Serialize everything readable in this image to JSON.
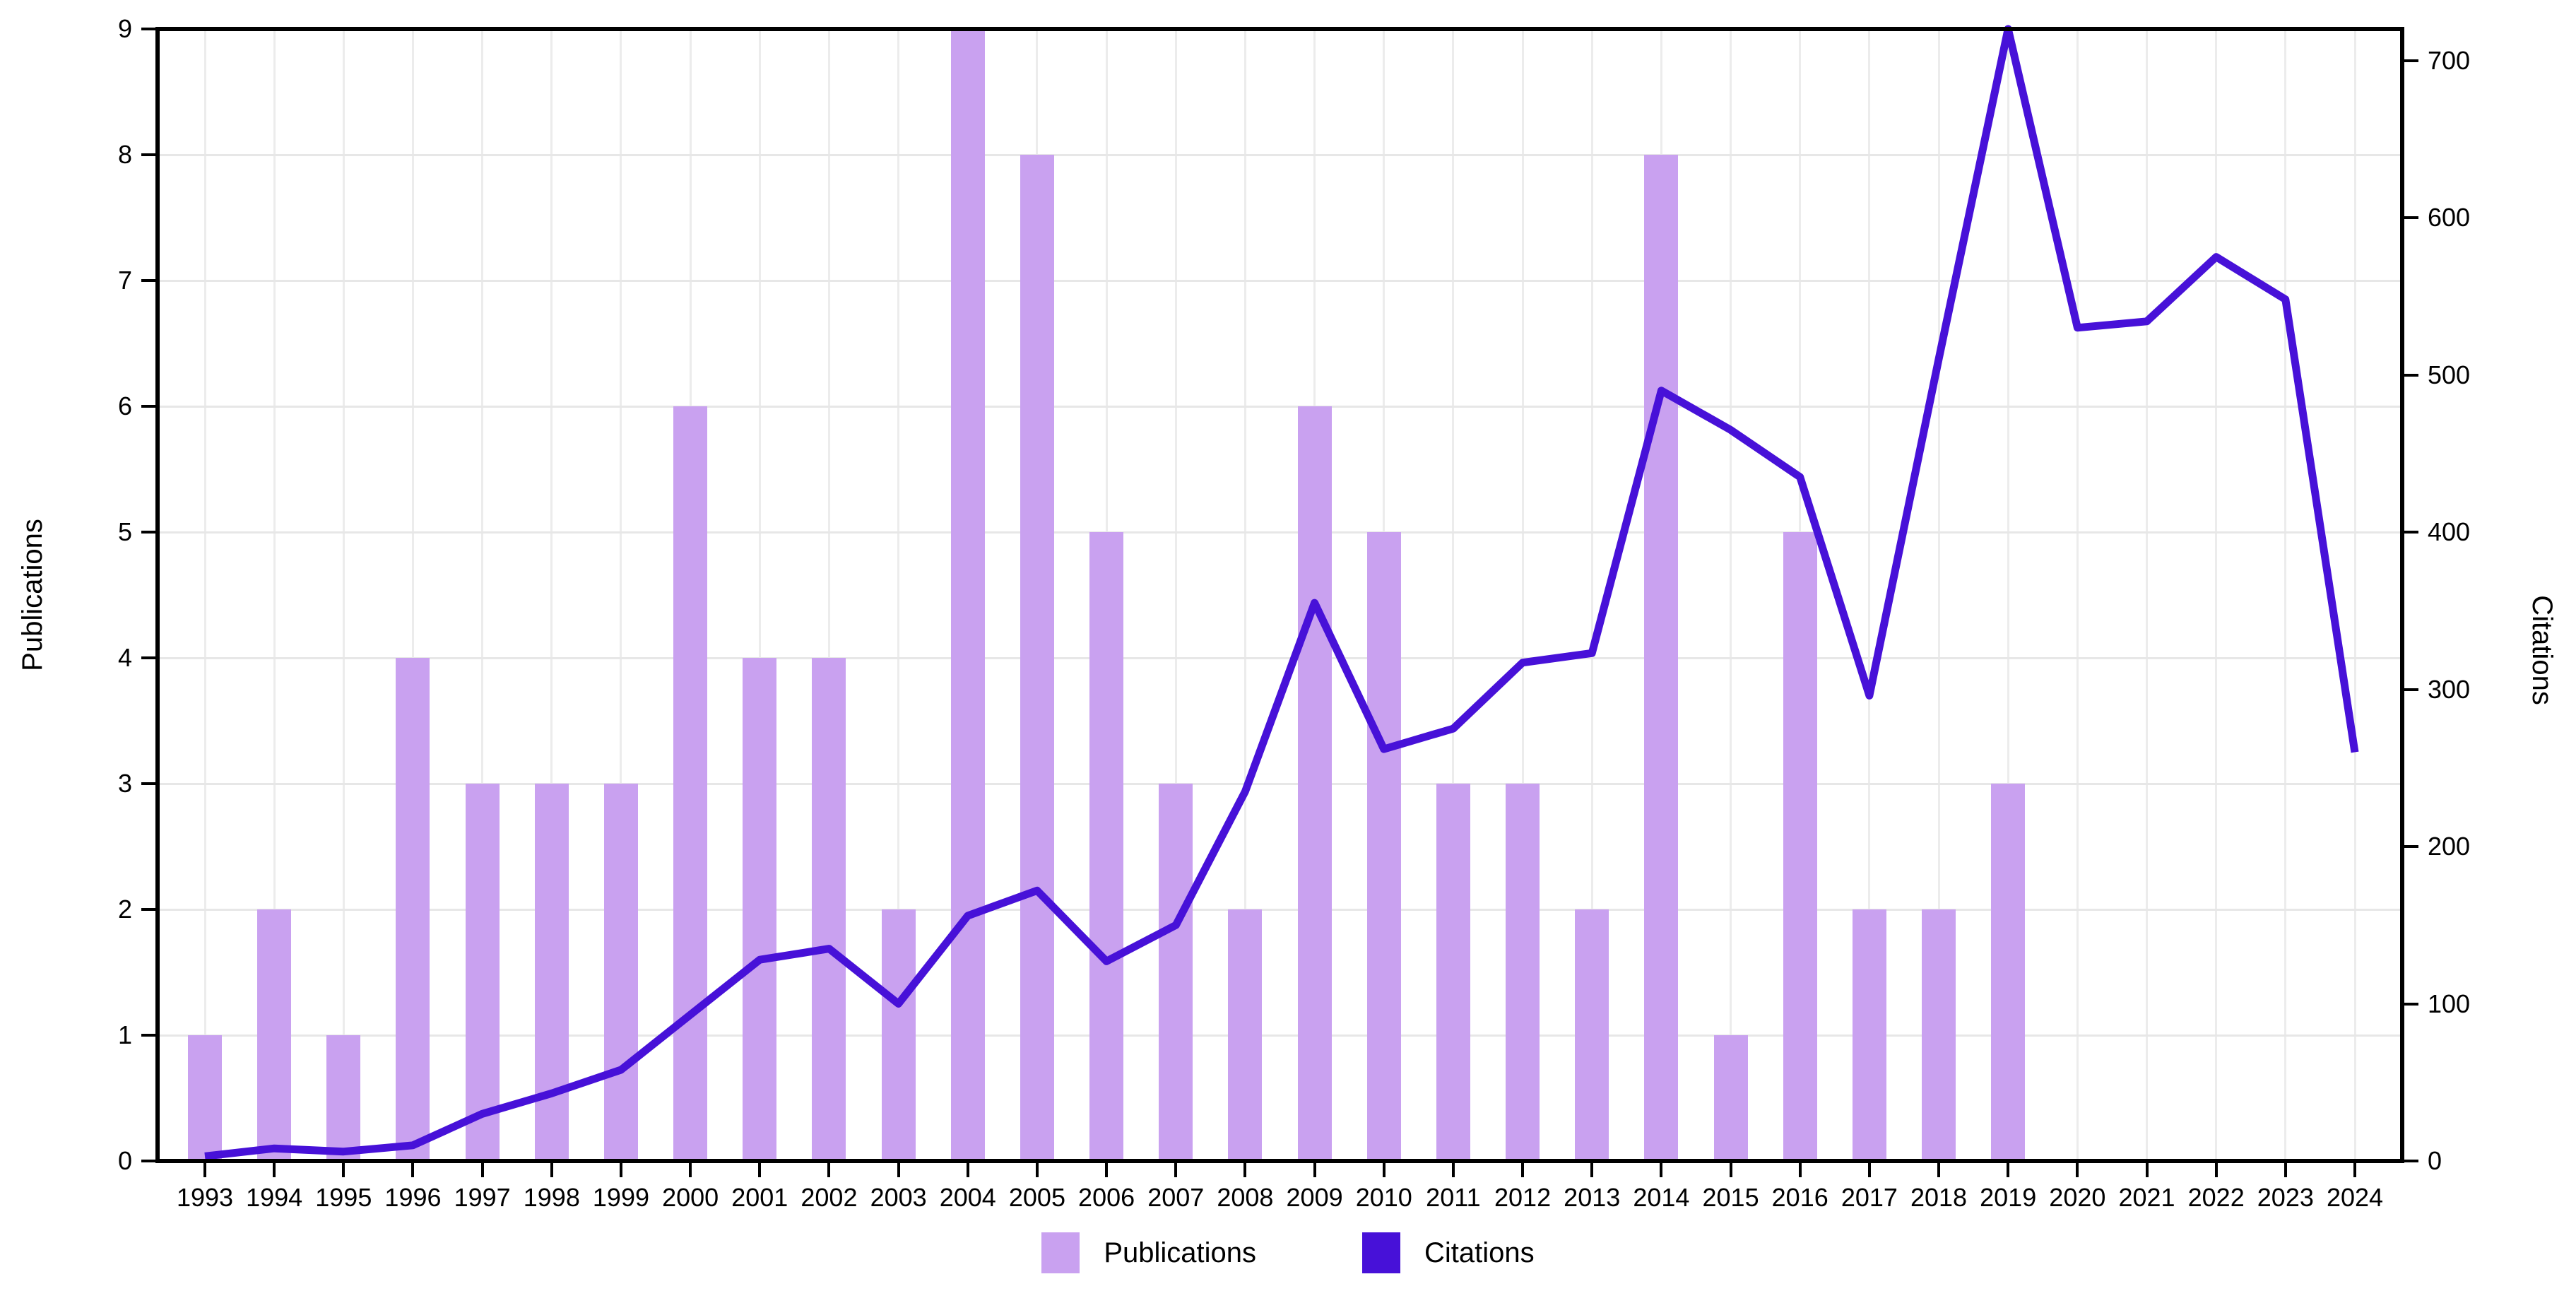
{
  "chart_data": {
    "type": "bar+line",
    "title": "",
    "categories": [
      "1993",
      "1994",
      "1995",
      "1996",
      "1997",
      "1998",
      "1999",
      "2000",
      "2001",
      "2002",
      "2003",
      "2004",
      "2005",
      "2006",
      "2007",
      "2008",
      "2009",
      "2010",
      "2011",
      "2012",
      "2013",
      "2014",
      "2015",
      "2016",
      "2017",
      "2018",
      "2019",
      "2020",
      "2021",
      "2022",
      "2023",
      "2024"
    ],
    "series": [
      {
        "name": "Publications",
        "type": "bar",
        "axis": "left",
        "color": "#c9a1f0",
        "values": [
          1,
          2,
          1,
          4,
          3,
          3,
          3,
          6,
          4,
          4,
          2,
          9,
          8,
          5,
          3,
          2,
          6,
          5,
          3,
          3,
          2,
          8,
          1,
          5,
          2,
          2,
          3,
          0,
          0,
          0,
          0,
          0
        ]
      },
      {
        "name": "Citations",
        "type": "line",
        "axis": "right",
        "color": "#4711d8",
        "values": [
          3,
          8,
          6,
          10,
          30,
          43,
          58,
          93,
          128,
          135,
          100,
          156,
          172,
          127,
          150,
          235,
          355,
          262,
          275,
          317,
          323,
          490,
          465,
          435,
          296,
          510,
          720,
          530,
          534,
          575,
          548,
          260
        ]
      }
    ],
    "left_axis": {
      "label": "Publications",
      "min": 0,
      "max": 9,
      "tick_labels": [
        "0",
        "1",
        "2",
        "3",
        "4",
        "5",
        "6",
        "7",
        "8",
        "9"
      ],
      "tick_values": [
        0,
        1,
        2,
        3,
        4,
        5,
        6,
        7,
        8,
        9
      ]
    },
    "right_axis": {
      "label": "Citations",
      "min": 0,
      "max": 720,
      "tick_labels": [
        "0",
        "100",
        "200",
        "300",
        "400",
        "500",
        "600",
        "700"
      ],
      "tick_values": [
        0,
        100,
        200,
        300,
        400,
        500,
        600,
        700
      ]
    },
    "grid": true,
    "legend": [
      {
        "label": "Publications",
        "color": "#c9a1f0"
      },
      {
        "label": "Citations",
        "color": "#4711d8"
      }
    ],
    "legend_position": "bottom-center"
  }
}
